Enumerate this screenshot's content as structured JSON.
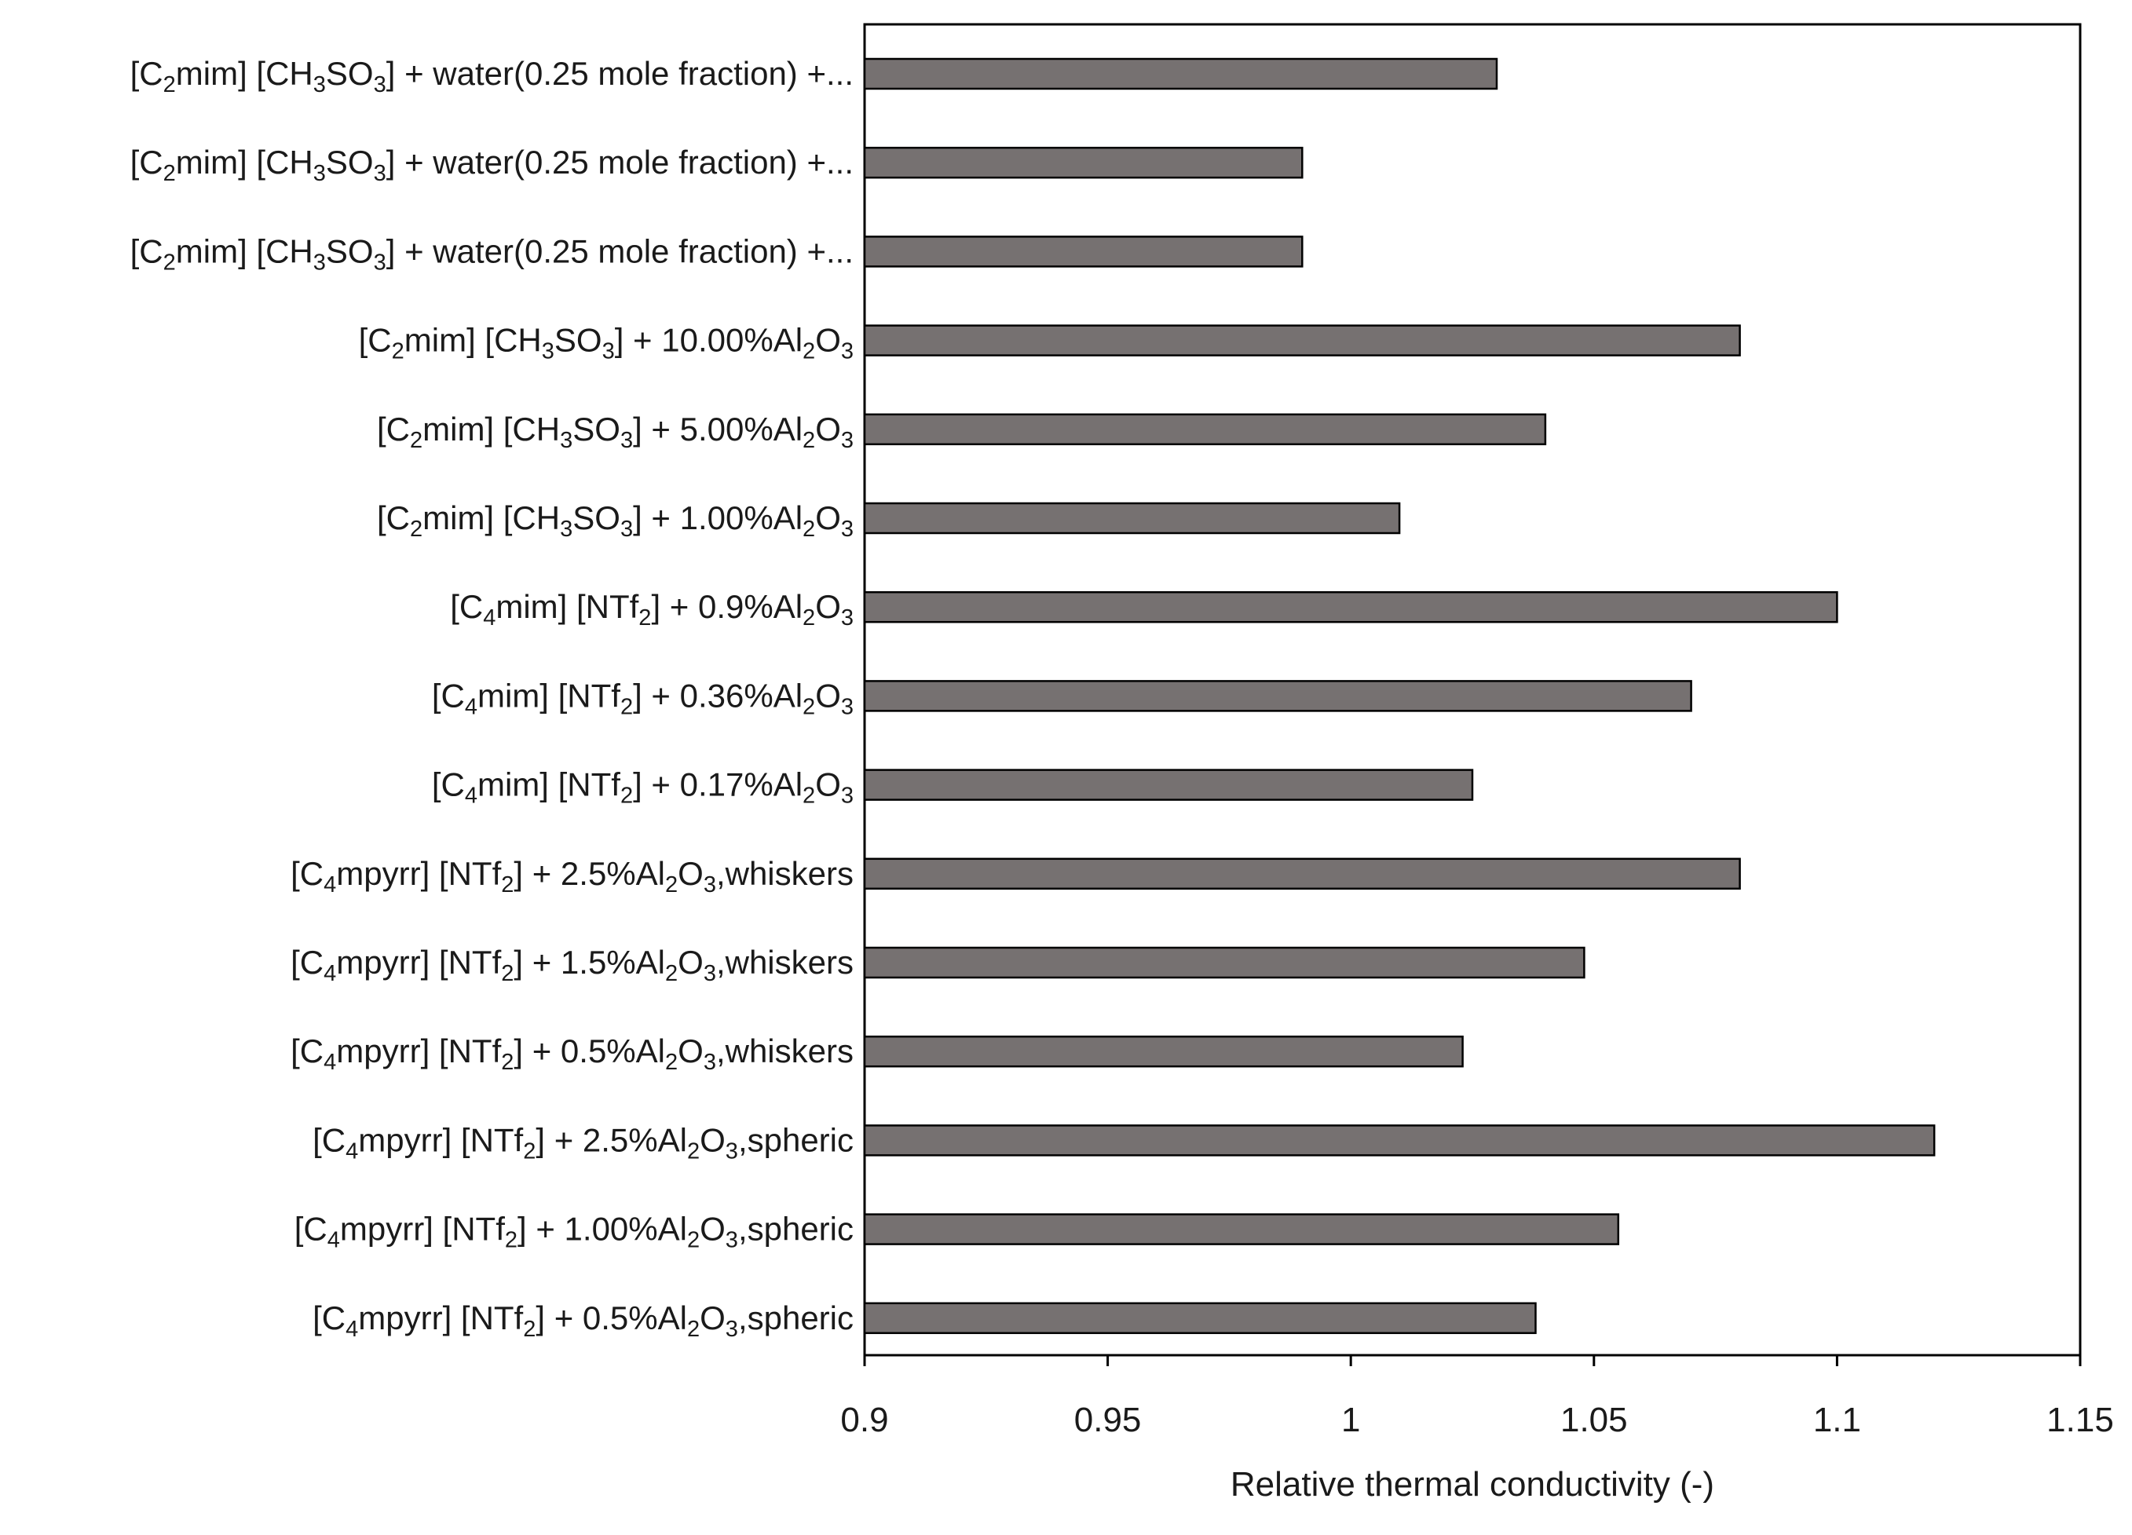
{
  "chart_data": {
    "type": "bar",
    "orientation": "horizontal",
    "title": "",
    "xlabel": "Relative thermal conductivity  (-)",
    "ylabel": "",
    "xlim": [
      0.9,
      1.15
    ],
    "xticks": [
      "0.9",
      "0.95",
      "1",
      "1.05",
      "1.1",
      "1.15"
    ],
    "grid": false,
    "bar_color": "#767171",
    "categories": [
      "[C2mim] [CH3SO3]  + water(0.25 mole fraction) +...",
      "[C2mim] [CH3SO3]  + water(0.25 mole fraction) +...",
      "[C2mim] [CH3SO3]  + water(0.25 mole fraction) +...",
      "[C2mim] [CH3SO3] + 10.00%Al2O3",
      "[C2mim] [CH3SO3] + 5.00%Al2O3",
      "[C2mim] [CH3SO3] + 1.00%Al2O3",
      "[C4mim] [NTf2] + 0.9%Al2O3",
      "[C4mim] [NTf2] + 0.36%Al2O3",
      "[C4mim] [NTf2] + 0.17%Al2O3",
      "[C4mpyrr] [NTf2] + 2.5%Al2O3,whiskers",
      "[C4mpyrr] [NTf2] + 1.5%Al2O3,whiskers",
      "[C4mpyrr] [NTf2] + 0.5%Al2O3,whiskers",
      "[C4mpyrr] [NTf2] + 2.5%Al2O3,spheric",
      "[C4mpyrr] [NTf2] + 1.00%Al2O3,spheric",
      "[C4mpyrr] [NTf2] + 0.5%Al2O3,spheric"
    ],
    "label_parts": [
      [
        [
          "t",
          "[C"
        ],
        [
          "s",
          "2"
        ],
        [
          "t",
          "mim] [CH"
        ],
        [
          "s",
          "3"
        ],
        [
          "t",
          "SO"
        ],
        [
          "s",
          "3"
        ],
        [
          "t",
          "]  + water(0.25 mole fraction) +..."
        ]
      ],
      [
        [
          "t",
          "[C"
        ],
        [
          "s",
          "2"
        ],
        [
          "t",
          "mim] [CH"
        ],
        [
          "s",
          "3"
        ],
        [
          "t",
          "SO"
        ],
        [
          "s",
          "3"
        ],
        [
          "t",
          "]  + water(0.25 mole fraction) +..."
        ]
      ],
      [
        [
          "t",
          "[C"
        ],
        [
          "s",
          "2"
        ],
        [
          "t",
          "mim] [CH"
        ],
        [
          "s",
          "3"
        ],
        [
          "t",
          "SO"
        ],
        [
          "s",
          "3"
        ],
        [
          "t",
          "]  + water(0.25 mole fraction) +..."
        ]
      ],
      [
        [
          "t",
          "[C"
        ],
        [
          "s",
          "2"
        ],
        [
          "t",
          "mim] [CH"
        ],
        [
          "s",
          "3"
        ],
        [
          "t",
          "SO"
        ],
        [
          "s",
          "3"
        ],
        [
          "t",
          "] + 10.00%Al"
        ],
        [
          "s",
          "2"
        ],
        [
          "t",
          "O"
        ],
        [
          "s",
          "3"
        ]
      ],
      [
        [
          "t",
          "[C"
        ],
        [
          "s",
          "2"
        ],
        [
          "t",
          "mim] [CH"
        ],
        [
          "s",
          "3"
        ],
        [
          "t",
          "SO"
        ],
        [
          "s",
          "3"
        ],
        [
          "t",
          "] + 5.00%Al"
        ],
        [
          "s",
          "2"
        ],
        [
          "t",
          "O"
        ],
        [
          "s",
          "3"
        ]
      ],
      [
        [
          "t",
          "[C"
        ],
        [
          "s",
          "2"
        ],
        [
          "t",
          "mim] [CH"
        ],
        [
          "s",
          "3"
        ],
        [
          "t",
          "SO"
        ],
        [
          "s",
          "3"
        ],
        [
          "t",
          "] + 1.00%Al"
        ],
        [
          "s",
          "2"
        ],
        [
          "t",
          "O"
        ],
        [
          "s",
          "3"
        ]
      ],
      [
        [
          "t",
          "[C"
        ],
        [
          "s",
          "4"
        ],
        [
          "t",
          "mim] [NTf"
        ],
        [
          "s",
          "2"
        ],
        [
          "t",
          "] + 0.9%Al"
        ],
        [
          "s",
          "2"
        ],
        [
          "t",
          "O"
        ],
        [
          "s",
          "3"
        ]
      ],
      [
        [
          "t",
          "[C"
        ],
        [
          "s",
          "4"
        ],
        [
          "t",
          "mim] [NTf"
        ],
        [
          "s",
          "2"
        ],
        [
          "t",
          "] + 0.36%Al"
        ],
        [
          "s",
          "2"
        ],
        [
          "t",
          "O"
        ],
        [
          "s",
          "3"
        ]
      ],
      [
        [
          "t",
          "[C"
        ],
        [
          "s",
          "4"
        ],
        [
          "t",
          "mim] [NTf"
        ],
        [
          "s",
          "2"
        ],
        [
          "t",
          "] + 0.17%Al"
        ],
        [
          "s",
          "2"
        ],
        [
          "t",
          "O"
        ],
        [
          "s",
          "3"
        ]
      ],
      [
        [
          "t",
          "[C"
        ],
        [
          "s",
          "4"
        ],
        [
          "t",
          "mpyrr] [NTf"
        ],
        [
          "s",
          "2"
        ],
        [
          "t",
          "] + 2.5%Al"
        ],
        [
          "s",
          "2"
        ],
        [
          "t",
          "O"
        ],
        [
          "s",
          "3"
        ],
        [
          "t",
          ",whiskers"
        ]
      ],
      [
        [
          "t",
          "[C"
        ],
        [
          "s",
          "4"
        ],
        [
          "t",
          "mpyrr] [NTf"
        ],
        [
          "s",
          "2"
        ],
        [
          "t",
          "] + 1.5%Al"
        ],
        [
          "s",
          "2"
        ],
        [
          "t",
          "O"
        ],
        [
          "s",
          "3"
        ],
        [
          "t",
          ",whiskers"
        ]
      ],
      [
        [
          "t",
          "[C"
        ],
        [
          "s",
          "4"
        ],
        [
          "t",
          "mpyrr] [NTf"
        ],
        [
          "s",
          "2"
        ],
        [
          "t",
          "] + 0.5%Al"
        ],
        [
          "s",
          "2"
        ],
        [
          "t",
          "O"
        ],
        [
          "s",
          "3"
        ],
        [
          "t",
          ",whiskers"
        ]
      ],
      [
        [
          "t",
          "[C"
        ],
        [
          "s",
          "4"
        ],
        [
          "t",
          "mpyrr] [NTf"
        ],
        [
          "s",
          "2"
        ],
        [
          "t",
          "] + 2.5%Al"
        ],
        [
          "s",
          "2"
        ],
        [
          "t",
          "O"
        ],
        [
          "s",
          "3"
        ],
        [
          "t",
          ",spheric"
        ]
      ],
      [
        [
          "t",
          "[C"
        ],
        [
          "s",
          "4"
        ],
        [
          "t",
          "mpyrr] [NTf"
        ],
        [
          "s",
          "2"
        ],
        [
          "t",
          "] + 1.00%Al"
        ],
        [
          "s",
          "2"
        ],
        [
          "t",
          "O"
        ],
        [
          "s",
          "3"
        ],
        [
          "t",
          ",spheric"
        ]
      ],
      [
        [
          "t",
          "[C"
        ],
        [
          "s",
          "4"
        ],
        [
          "t",
          "mpyrr] [NTf"
        ],
        [
          "s",
          "2"
        ],
        [
          "t",
          "] + 0.5%Al"
        ],
        [
          "s",
          "2"
        ],
        [
          "t",
          "O"
        ],
        [
          "s",
          "3"
        ],
        [
          "t",
          ",spheric"
        ]
      ]
    ],
    "values": [
      1.03,
      0.99,
      0.99,
      1.08,
      1.04,
      1.01,
      1.1,
      1.07,
      1.025,
      1.08,
      1.048,
      1.023,
      1.12,
      1.055,
      1.038
    ]
  }
}
